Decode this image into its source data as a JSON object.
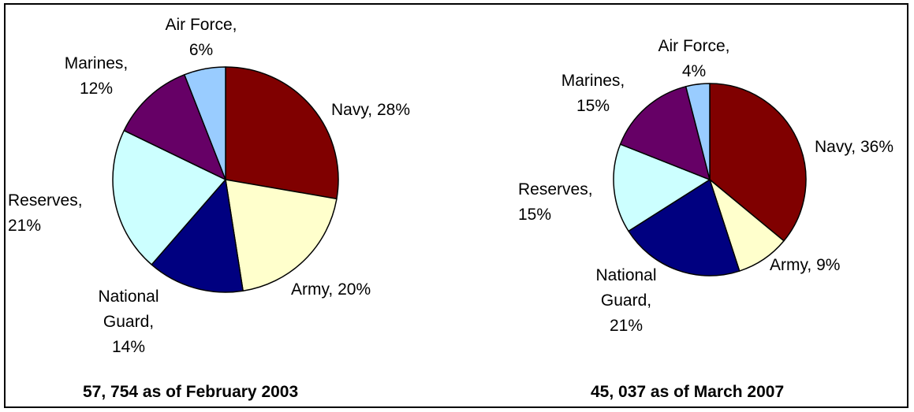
{
  "chart_data": [
    {
      "type": "pie",
      "caption": "57, 754 as of February 2003",
      "slices": [
        {
          "label": "Navy",
          "value": 28,
          "pct_text": "28%",
          "color": "#800000",
          "label_lines": [
            "Navy, 28%"
          ]
        },
        {
          "label": "Army",
          "value": 20,
          "pct_text": "20%",
          "color": "#FFFFCC",
          "label_lines": [
            "Army, 20%"
          ]
        },
        {
          "label": "National Guard",
          "value": 14,
          "pct_text": "14%",
          "color": "#000080",
          "label_lines": [
            "National",
            "Guard,",
            "14%"
          ]
        },
        {
          "label": "Reserves",
          "value": 21,
          "pct_text": "21%",
          "color": "#CCFFFF",
          "label_lines": [
            "Reserves,",
            "21%"
          ]
        },
        {
          "label": "Marines",
          "value": 12,
          "pct_text": "12%",
          "color": "#660066",
          "label_lines": [
            "Marines,",
            "12%"
          ]
        },
        {
          "label": "Air Force",
          "value": 6,
          "pct_text": "6%",
          "color": "#99CCFF",
          "label_lines": [
            "Air Force,",
            "6%"
          ]
        }
      ]
    },
    {
      "type": "pie",
      "caption": "45, 037 as of March 2007",
      "slices": [
        {
          "label": "Navy",
          "value": 36,
          "pct_text": "36%",
          "color": "#800000",
          "label_lines": [
            "Navy, 36%"
          ]
        },
        {
          "label": "Army",
          "value": 9,
          "pct_text": "9%",
          "color": "#FFFFCC",
          "label_lines": [
            "Army, 9%"
          ]
        },
        {
          "label": "National Guard",
          "value": 21,
          "pct_text": "21%",
          "color": "#000080",
          "label_lines": [
            "National",
            "Guard,",
            "21%"
          ]
        },
        {
          "label": "Reserves",
          "value": 15,
          "pct_text": "15%",
          "color": "#CCFFFF",
          "label_lines": [
            "Reserves,",
            "15%"
          ]
        },
        {
          "label": "Marines",
          "value": 15,
          "pct_text": "15%",
          "color": "#660066",
          "label_lines": [
            "Marines,",
            "15%"
          ]
        },
        {
          "label": "Air Force",
          "value": 4,
          "pct_text": "4%",
          "color": "#99CCFF",
          "label_lines": [
            "Air Force,",
            "4%"
          ]
        }
      ]
    }
  ]
}
